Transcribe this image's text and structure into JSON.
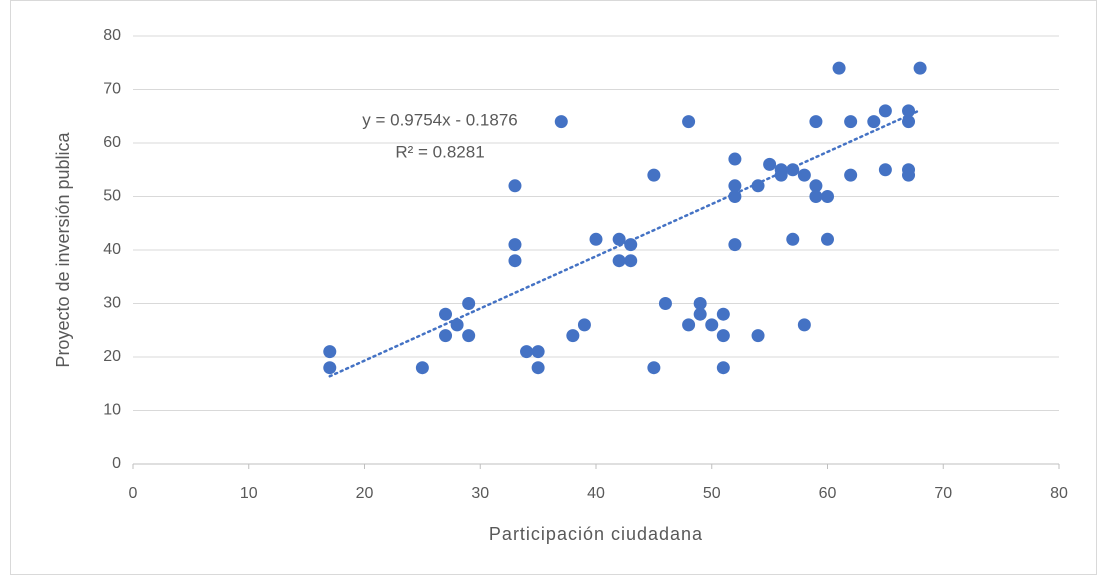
{
  "chart_data": {
    "type": "scatter",
    "x_label": "Participación ciudadana",
    "y_label": "Proyecto de inversión publica",
    "x": [
      17,
      17,
      25,
      27,
      27,
      28,
      29,
      29,
      33,
      33,
      33,
      34,
      35,
      35,
      37,
      38,
      39,
      40,
      42,
      42,
      43,
      43,
      45,
      45,
      46,
      48,
      48,
      49,
      49,
      50,
      51,
      51,
      51,
      52,
      52,
      52,
      52,
      54,
      54,
      55,
      56,
      56,
      57,
      57,
      58,
      58,
      59,
      59,
      59,
      60,
      60,
      61,
      62,
      62,
      64,
      65,
      65,
      67,
      67,
      67,
      67,
      68
    ],
    "values": [
      21,
      18,
      18,
      28,
      24,
      26,
      30,
      24,
      52,
      41,
      38,
      21,
      21,
      18,
      64,
      24,
      26,
      42,
      42,
      38,
      41,
      38,
      54,
      18,
      30,
      64,
      26,
      30,
      28,
      26,
      28,
      24,
      18,
      57,
      52,
      50,
      41,
      52,
      24,
      56,
      55,
      54,
      55,
      42,
      54,
      26,
      64,
      52,
      50,
      50,
      42,
      74,
      64,
      54,
      64,
      66,
      55,
      66,
      64,
      55,
      54,
      74
    ],
    "color": "#4472c4",
    "trendline": {
      "slope": 0.9754,
      "intercept": -0.1876,
      "equation": "y = 0.9754x - 0.1876",
      "r2": "R² = 0.8281",
      "color": "#4472c4"
    },
    "xlim": [
      0,
      80
    ],
    "xticks": [
      0,
      10,
      20,
      30,
      40,
      50,
      60,
      70,
      80
    ],
    "ylim": [
      0,
      80
    ],
    "yticks": [
      0,
      10,
      20,
      30,
      40,
      50,
      60,
      70,
      80
    ],
    "grid": true
  }
}
